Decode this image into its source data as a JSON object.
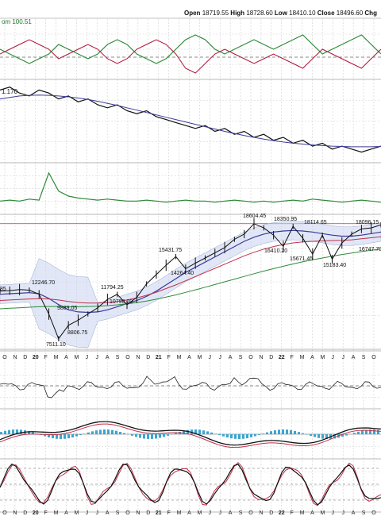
{
  "header": {
    "open_label": "Open",
    "open": "18719.55",
    "high_label": "High",
    "high": "18728.60",
    "low_label": "Low",
    "low": "18410.10",
    "close_label": "Close",
    "close": "18496.60",
    "chg_label": "Chg"
  },
  "chart_data": {
    "type": "line",
    "title": "",
    "panels": [
      {
        "name": "oscillator-1",
        "label": "om 100.51",
        "series": [
          {
            "name": "",
            "color": "#2e8b3a",
            "values": [
              0.5,
              0.4,
              0.3,
              0.2,
              0.3,
              0.4,
              0.6,
              0.5,
              0.4,
              0.3,
              0.4,
              0.6,
              0.7,
              0.6,
              0.4,
              0.3,
              0.2,
              0.3,
              0.5,
              0.7,
              0.8,
              0.7,
              0.5,
              0.4,
              0.5,
              0.6,
              0.7,
              0.6,
              0.5,
              0.6,
              0.7,
              0.8,
              0.6,
              0.4,
              0.5,
              0.6,
              0.7,
              0.8,
              0.6,
              0.4
            ]
          },
          {
            "name": "",
            "color": "#b0143a",
            "values": [
              0.4,
              0.5,
              0.6,
              0.7,
              0.6,
              0.5,
              0.3,
              0.4,
              0.5,
              0.6,
              0.5,
              0.3,
              0.2,
              0.3,
              0.5,
              0.6,
              0.7,
              0.6,
              0.4,
              0.1,
              0.0,
              0.2,
              0.4,
              0.5,
              0.4,
              0.3,
              0.2,
              0.3,
              0.4,
              0.3,
              0.2,
              0.1,
              0.3,
              0.5,
              0.4,
              0.3,
              0.2,
              0.1,
              0.3,
              0.5
            ]
          }
        ]
      },
      {
        "name": "relative-strength",
        "label": "1.170",
        "series": [
          {
            "name": "",
            "color": "#111111",
            "values": [
              1.18,
              1.19,
              1.17,
              1.16,
              1.18,
              1.17,
              1.15,
              1.16,
              1.14,
              1.15,
              1.13,
              1.12,
              1.13,
              1.11,
              1.1,
              1.11,
              1.09,
              1.08,
              1.07,
              1.06,
              1.05,
              1.06,
              1.04,
              1.05,
              1.03,
              1.04,
              1.02,
              1.03,
              1.01,
              1.02,
              1.0,
              1.01,
              0.99,
              1.0,
              0.98,
              0.99,
              0.98,
              0.97,
              0.98,
              0.99
            ]
          },
          {
            "name": "",
            "color": "#3a3a9a",
            "values": [
              1.15,
              1.155,
              1.16,
              1.162,
              1.163,
              1.162,
              1.16,
              1.157,
              1.153,
              1.148,
              1.142,
              1.135,
              1.128,
              1.12,
              1.112,
              1.104,
              1.096,
              1.088,
              1.08,
              1.072,
              1.064,
              1.056,
              1.048,
              1.04,
              1.033,
              1.026,
              1.02,
              1.014,
              1.009,
              1.004,
              1.0,
              0.997,
              0.994,
              0.992,
              0.99,
              0.989,
              0.988,
              0.988,
              0.988,
              0.989
            ]
          }
        ]
      },
      {
        "name": "volatility",
        "series": [
          {
            "name": "",
            "color": "#2e8b3a",
            "values": [
              10,
              11,
              10,
              12,
              11,
              38,
              20,
              15,
              13,
              12,
              11,
              12,
              11,
              10,
              10,
              11,
              10,
              9,
              10,
              11,
              10,
              10,
              9,
              10,
              11,
              10,
              9,
              10,
              9,
              10,
              11,
              10,
              12,
              11,
              10,
              9,
              10,
              11,
              10,
              9
            ]
          }
        ]
      },
      {
        "name": "price",
        "series": [
          {
            "name": "",
            "color": "#111111",
            "values": [
              12100,
              12150,
              12246.7,
              12200,
              11800,
              9889.05,
              7511.1,
              8806.75,
              9300,
              9900,
              10500,
              11300,
              11794.25,
              10790.2,
              11500,
              12800,
              13700,
              14600,
              15431.75,
              14264.4,
              14800,
              15300,
              15800,
              16300,
              17100,
              17600,
              18604.45,
              18200,
              17500,
              16410.2,
              18350.95,
              17200,
              15671.45,
              17500,
              15183.4,
              16747.7,
              17600,
              18096.15,
              18200,
              18496.6
            ]
          },
          {
            "name": "",
            "color": "#3a3a9a",
            "values": [
              11800,
              11850,
              11900,
              11950,
              11850,
              11400,
              10800,
              10300,
              10100,
              10050,
              10100,
              10300,
              10600,
              10900,
              11200,
              11600,
              12100,
              12700,
              13300,
              13900,
              14400,
              14900,
              15400,
              15900,
              16400,
              16900,
              17300,
              17600,
              17800,
              17900,
              17950,
              17900,
              17800,
              17650,
              17500,
              17400,
              17400,
              17500,
              17650,
              17800
            ]
          },
          {
            "name": "",
            "color": "#c0304a",
            "values": [
              11200,
              11250,
              11300,
              11350,
              11380,
              11350,
              11250,
              11100,
              11000,
              10950,
              10950,
              11000,
              11100,
              11250,
              11450,
              11700,
              12000,
              12350,
              12700,
              13100,
              13500,
              13900,
              14300,
              14700,
              15100,
              15500,
              15850,
              16150,
              16400,
              16600,
              16750,
              16850,
              16900,
              16950,
              16980,
              17000,
              17050,
              17150,
              17250,
              17350
            ]
          },
          {
            "name": "",
            "color": "#2e8b3a",
            "values": [
              10400,
              10450,
              10500,
              10550,
              10600,
              10620,
              10620,
              10600,
              10600,
              10620,
              10650,
              10700,
              10780,
              10880,
              11000,
              11150,
              11320,
              11520,
              11740,
              11980,
              12230,
              12480,
              12740,
              13000,
              13260,
              13520,
              13780,
              14030,
              14270,
              14500,
              14720,
              14930,
              15120,
              15300,
              15470,
              15630,
              15780,
              15920,
              16050,
              16170
            ]
          }
        ],
        "annotations": [
          "12246.70",
          "9889.05",
          "7511.10",
          "8806.75",
          "11794.25",
          "10790.20",
          "15431.75",
          "14264.40",
          "18604.45",
          "18350.95",
          "18114.65",
          "16410.20",
          "15671.45",
          "15183.40",
          "18096.15",
          "16747.70"
        ],
        "resistance": 18604.45
      },
      {
        "name": "oscillator-2"
      },
      {
        "name": "macd"
      },
      {
        "name": "stochastic"
      }
    ],
    "x_ticks": [
      "O",
      "N",
      "D",
      "20",
      "F",
      "M",
      "A",
      "M",
      "J",
      "J",
      "A",
      "S",
      "O",
      "N",
      "D",
      "21",
      "F",
      "M",
      "A",
      "M",
      "J",
      "J",
      "A",
      "S",
      "O",
      "N",
      "D",
      "22",
      "F",
      "M",
      "A",
      "M",
      "J",
      "J",
      "A",
      "S",
      "O"
    ],
    "bold_ticks": [
      "20",
      "21",
      "22"
    ]
  }
}
